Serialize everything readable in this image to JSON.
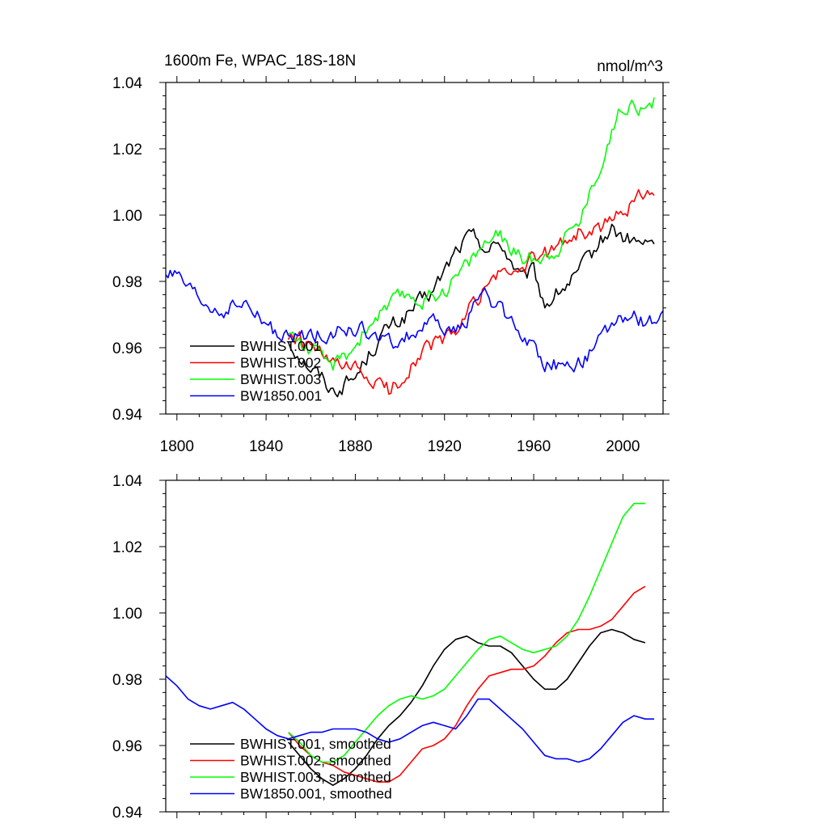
{
  "chart_data": [
    {
      "type": "line",
      "title": "1600m Fe, WPAC_18S-18N",
      "units": "nmol/m^3",
      "xlabel": "",
      "ylabel": "",
      "xlim": [
        1795,
        2018
      ],
      "ylim": [
        0.94,
        1.04
      ],
      "xticks": [
        1800,
        1840,
        1880,
        1920,
        1960,
        2000
      ],
      "yticks": [
        0.94,
        0.96,
        0.98,
        1.0,
        1.02,
        1.04
      ],
      "ytick_labels": [
        "0.94",
        "0.96",
        "0.98",
        "1.00",
        "1.02",
        "1.04"
      ],
      "legend_position": "bottom-left",
      "series": [
        {
          "name": "BWHIST.001",
          "color": "#000000",
          "noise": 0.0022,
          "x": [
            1850,
            1855,
            1860,
            1865,
            1870,
            1875,
            1880,
            1885,
            1890,
            1895,
            1900,
            1905,
            1910,
            1915,
            1920,
            1925,
            1930,
            1935,
            1940,
            1945,
            1950,
            1955,
            1960,
            1965,
            1970,
            1975,
            1980,
            1985,
            1990,
            1995,
            2000,
            2005,
            2010,
            2014
          ],
          "y": [
            0.962,
            0.958,
            0.954,
            0.951,
            0.947,
            0.949,
            0.951,
            0.957,
            0.962,
            0.966,
            0.968,
            0.971,
            0.974,
            0.977,
            0.983,
            0.989,
            0.993,
            0.993,
            0.989,
            0.992,
            0.986,
            0.98,
            0.983,
            0.973,
            0.976,
            0.979,
            0.982,
            0.987,
            0.992,
            0.996,
            0.993,
            0.992,
            0.991,
            0.991
          ]
        },
        {
          "name": "BWHIST.002",
          "color": "#ff0000",
          "noise": 0.0022,
          "x": [
            1850,
            1855,
            1860,
            1865,
            1870,
            1875,
            1880,
            1885,
            1890,
            1895,
            1900,
            1905,
            1910,
            1915,
            1920,
            1925,
            1930,
            1935,
            1940,
            1945,
            1950,
            1955,
            1960,
            1965,
            1970,
            1975,
            1980,
            1985,
            1990,
            1995,
            2000,
            2005,
            2010,
            2014
          ],
          "y": [
            0.963,
            0.962,
            0.96,
            0.957,
            0.955,
            0.953,
            0.953,
            0.951,
            0.949,
            0.947,
            0.95,
            0.955,
            0.959,
            0.961,
            0.962,
            0.965,
            0.97,
            0.975,
            0.98,
            0.982,
            0.983,
            0.984,
            0.986,
            0.988,
            0.99,
            0.993,
            0.995,
            0.994,
            0.996,
            0.998,
            1.002,
            1.004,
            1.008,
            1.008
          ]
        },
        {
          "name": "BWHIST.003",
          "color": "#00ff00",
          "noise": 0.0022,
          "x": [
            1850,
            1855,
            1860,
            1865,
            1870,
            1875,
            1880,
            1885,
            1890,
            1895,
            1900,
            1905,
            1910,
            1915,
            1920,
            1925,
            1930,
            1935,
            1940,
            1945,
            1950,
            1955,
            1960,
            1965,
            1970,
            1975,
            1980,
            1985,
            1990,
            1995,
            2000,
            2005,
            2010,
            2014
          ],
          "y": [
            0.965,
            0.962,
            0.959,
            0.956,
            0.955,
            0.957,
            0.961,
            0.966,
            0.97,
            0.972,
            0.975,
            0.976,
            0.974,
            0.976,
            0.978,
            0.981,
            0.985,
            0.989,
            0.993,
            0.993,
            0.99,
            0.987,
            0.987,
            0.988,
            0.99,
            0.994,
            0.998,
            1.006,
            1.016,
            1.025,
            1.033,
            1.035,
            1.031,
            1.034
          ]
        },
        {
          "name": "BW1850.001",
          "color": "#0000ff",
          "noise": 0.0022,
          "x": [
            1795,
            1800,
            1805,
            1810,
            1815,
            1820,
            1825,
            1830,
            1835,
            1840,
            1845,
            1850,
            1855,
            1860,
            1865,
            1870,
            1875,
            1880,
            1885,
            1890,
            1895,
            1900,
            1905,
            1910,
            1915,
            1920,
            1925,
            1930,
            1935,
            1940,
            1945,
            1950,
            1955,
            1960,
            1965,
            1970,
            1975,
            1980,
            1985,
            1990,
            1995,
            2000,
            2005,
            2010,
            2015,
            2018
          ],
          "y": [
            0.983,
            0.981,
            0.977,
            0.974,
            0.972,
            0.971,
            0.972,
            0.973,
            0.97,
            0.967,
            0.964,
            0.962,
            0.963,
            0.964,
            0.964,
            0.965,
            0.965,
            0.965,
            0.965,
            0.962,
            0.961,
            0.962,
            0.964,
            0.966,
            0.967,
            0.966,
            0.964,
            0.969,
            0.976,
            0.975,
            0.971,
            0.968,
            0.964,
            0.96,
            0.956,
            0.955,
            0.955,
            0.955,
            0.958,
            0.962,
            0.966,
            0.969,
            0.969,
            0.968,
            0.968,
            0.968
          ]
        }
      ]
    },
    {
      "type": "line",
      "title": "",
      "xlabel": "",
      "ylabel": "",
      "xlim": [
        1795,
        2018
      ],
      "ylim": [
        0.94,
        1.04
      ],
      "xticks": [
        1800,
        1840,
        1880,
        1920,
        1960,
        2000
      ],
      "yticks": [
        0.94,
        0.96,
        0.98,
        1.0,
        1.02,
        1.04
      ],
      "ytick_labels": [
        "0.94",
        "0.96",
        "0.98",
        "1.00",
        "1.02",
        "1.04"
      ],
      "legend_position": "bottom-left",
      "series": [
        {
          "name": "BWHIST.001, smoothed",
          "color": "#000000",
          "x": [
            1850,
            1855,
            1860,
            1865,
            1870,
            1875,
            1880,
            1885,
            1890,
            1895,
            1900,
            1905,
            1910,
            1915,
            1920,
            1925,
            1930,
            1935,
            1940,
            1945,
            1950,
            1955,
            1960,
            1965,
            1970,
            1975,
            1980,
            1985,
            1990,
            1995,
            2000,
            2005,
            2010
          ],
          "y": [
            0.961,
            0.957,
            0.953,
            0.95,
            0.948,
            0.95,
            0.953,
            0.957,
            0.962,
            0.966,
            0.969,
            0.973,
            0.978,
            0.984,
            0.989,
            0.992,
            0.993,
            0.991,
            0.99,
            0.99,
            0.988,
            0.984,
            0.98,
            0.977,
            0.977,
            0.98,
            0.985,
            0.99,
            0.994,
            0.995,
            0.994,
            0.992,
            0.991
          ]
        },
        {
          "name": "BWHIST.002, smoothed",
          "color": "#ff0000",
          "x": [
            1850,
            1855,
            1860,
            1865,
            1870,
            1875,
            1880,
            1885,
            1890,
            1895,
            1900,
            1905,
            1910,
            1915,
            1920,
            1925,
            1930,
            1935,
            1940,
            1945,
            1950,
            1955,
            1960,
            1965,
            1970,
            1975,
            1980,
            1985,
            1990,
            1995,
            2000,
            2005,
            2010
          ],
          "y": [
            0.964,
            0.96,
            0.957,
            0.955,
            0.954,
            0.952,
            0.951,
            0.95,
            0.949,
            0.949,
            0.951,
            0.955,
            0.959,
            0.96,
            0.962,
            0.966,
            0.972,
            0.977,
            0.981,
            0.982,
            0.983,
            0.983,
            0.984,
            0.987,
            0.991,
            0.994,
            0.995,
            0.995,
            0.996,
            0.998,
            1.002,
            1.006,
            1.008
          ]
        },
        {
          "name": "BWHIST.003, smoothed",
          "color": "#00ff00",
          "x": [
            1850,
            1855,
            1860,
            1865,
            1870,
            1875,
            1880,
            1885,
            1890,
            1895,
            1900,
            1905,
            1910,
            1915,
            1920,
            1925,
            1930,
            1935,
            1940,
            1945,
            1950,
            1955,
            1960,
            1965,
            1970,
            1975,
            1980,
            1985,
            1990,
            1995,
            2000,
            2005,
            2010
          ],
          "y": [
            0.964,
            0.961,
            0.957,
            0.955,
            0.955,
            0.957,
            0.961,
            0.965,
            0.969,
            0.972,
            0.974,
            0.975,
            0.974,
            0.975,
            0.977,
            0.981,
            0.985,
            0.989,
            0.992,
            0.993,
            0.991,
            0.989,
            0.988,
            0.989,
            0.99,
            0.993,
            0.998,
            1.005,
            1.013,
            1.021,
            1.029,
            1.033,
            1.033
          ]
        },
        {
          "name": "BW1850.001, smoothed",
          "color": "#0000ff",
          "x": [
            1795,
            1800,
            1805,
            1810,
            1815,
            1820,
            1825,
            1830,
            1835,
            1840,
            1845,
            1850,
            1855,
            1860,
            1865,
            1870,
            1875,
            1880,
            1885,
            1890,
            1895,
            1900,
            1905,
            1910,
            1915,
            1920,
            1925,
            1930,
            1935,
            1940,
            1945,
            1950,
            1955,
            1960,
            1965,
            1970,
            1975,
            1980,
            1985,
            1990,
            1995,
            2000,
            2005,
            2010,
            2014
          ],
          "y": [
            0.981,
            0.978,
            0.974,
            0.972,
            0.971,
            0.972,
            0.973,
            0.971,
            0.968,
            0.965,
            0.963,
            0.962,
            0.963,
            0.964,
            0.964,
            0.965,
            0.965,
            0.965,
            0.964,
            0.962,
            0.961,
            0.962,
            0.964,
            0.966,
            0.967,
            0.966,
            0.965,
            0.969,
            0.974,
            0.974,
            0.971,
            0.968,
            0.965,
            0.961,
            0.957,
            0.956,
            0.956,
            0.955,
            0.956,
            0.959,
            0.963,
            0.967,
            0.969,
            0.968,
            0.968
          ]
        }
      ]
    }
  ]
}
